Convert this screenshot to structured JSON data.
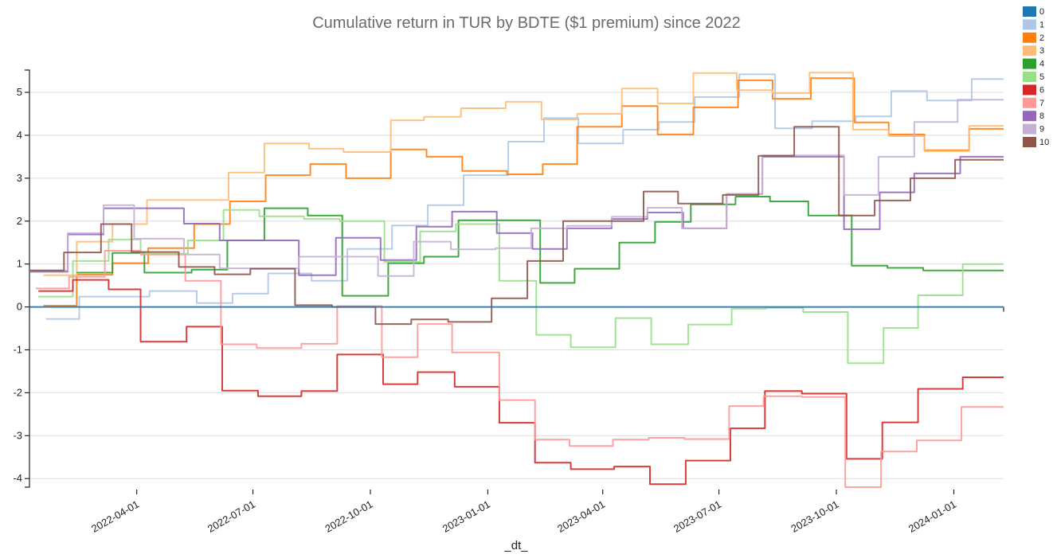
{
  "chart_data": {
    "type": "line",
    "title": "Cumulative return in TUR by BDTE ($1 premium) since 2022",
    "xlabel": "_dt_",
    "ylabel": "",
    "xlim": [
      "2022-01-07",
      "2024-02-09"
    ],
    "ylim": [
      -4.2,
      5.52
    ],
    "grid": true,
    "legend_position": "top-right",
    "step": true,
    "yticks": [
      -4,
      -3,
      -2,
      -1,
      0,
      1,
      2,
      3,
      4,
      5
    ],
    "xticks": [
      "2022-04-01",
      "2022-07-01",
      "2022-10-01",
      "2023-01-01",
      "2023-04-01",
      "2023-07-01",
      "2023-10-01",
      "2024-01-01"
    ],
    "series": [
      {
        "name": "0",
        "color": "#1f77b4",
        "points": [
          [
            "2022-01-07",
            0
          ],
          [
            "2024-02-09",
            0
          ]
        ]
      },
      {
        "name": "1",
        "color": "#aec7e8",
        "points": [
          [
            "2022-01-20",
            -0.28
          ],
          [
            "2022-02-15",
            0.24
          ],
          [
            "2022-04-11",
            0.37
          ],
          [
            "2022-05-18",
            0.09
          ],
          [
            "2022-06-15",
            0.31
          ],
          [
            "2022-07-13",
            0.78
          ],
          [
            "2022-08-16",
            0.61
          ],
          [
            "2022-09-13",
            1.35
          ],
          [
            "2022-10-18",
            1.9
          ],
          [
            "2022-11-15",
            2.37
          ],
          [
            "2022-12-13",
            3.07
          ],
          [
            "2023-01-17",
            3.85
          ],
          [
            "2023-02-14",
            4.4
          ],
          [
            "2023-03-13",
            3.81
          ],
          [
            "2023-04-17",
            4.13
          ],
          [
            "2023-05-15",
            4.31
          ],
          [
            "2023-06-12",
            4.89
          ],
          [
            "2023-07-17",
            5.42
          ],
          [
            "2023-08-14",
            4.16
          ],
          [
            "2023-09-12",
            4.33
          ],
          [
            "2023-10-16",
            4.44
          ],
          [
            "2023-11-13",
            5.03
          ],
          [
            "2023-12-11",
            4.81
          ],
          [
            "2024-01-15",
            5.31
          ]
        ]
      },
      {
        "name": "2",
        "color": "#ff7f0e",
        "points": [
          [
            "2022-01-18",
            0.03
          ],
          [
            "2022-02-13",
            0.75
          ],
          [
            "2022-03-13",
            1.02
          ],
          [
            "2022-04-10",
            1.37
          ],
          [
            "2022-05-16",
            1.93
          ],
          [
            "2022-06-13",
            2.46
          ],
          [
            "2022-07-11",
            3.07
          ],
          [
            "2022-08-15",
            3.33
          ],
          [
            "2022-09-12",
            3.0
          ],
          [
            "2022-10-17",
            3.67
          ],
          [
            "2022-11-14",
            3.5
          ],
          [
            "2022-12-12",
            3.17
          ],
          [
            "2023-01-16",
            3.09
          ],
          [
            "2023-02-13",
            3.33
          ],
          [
            "2023-03-12",
            4.2
          ],
          [
            "2023-04-16",
            4.68
          ],
          [
            "2023-05-14",
            4.02
          ],
          [
            "2023-06-11",
            4.65
          ],
          [
            "2023-07-16",
            5.28
          ],
          [
            "2023-08-12",
            4.85
          ],
          [
            "2023-09-11",
            5.33
          ],
          [
            "2023-10-15",
            4.3
          ],
          [
            "2023-11-11",
            4.02
          ],
          [
            "2023-12-09",
            3.65
          ],
          [
            "2024-01-13",
            4.15
          ]
        ]
      },
      {
        "name": "3",
        "color": "#ffbb78",
        "points": [
          [
            "2022-01-18",
            0.74
          ],
          [
            "2022-02-13",
            1.52
          ],
          [
            "2022-03-13",
            1.93
          ],
          [
            "2022-04-09",
            2.49
          ],
          [
            "2022-06-12",
            3.13
          ],
          [
            "2022-07-10",
            3.81
          ],
          [
            "2022-08-14",
            3.69
          ],
          [
            "2022-09-10",
            3.61
          ],
          [
            "2022-10-17",
            4.35
          ],
          [
            "2022-11-12",
            4.43
          ],
          [
            "2022-12-11",
            4.63
          ],
          [
            "2023-01-15",
            4.78
          ],
          [
            "2023-02-12",
            4.37
          ],
          [
            "2023-03-12",
            4.5
          ],
          [
            "2023-04-16",
            5.09
          ],
          [
            "2023-05-14",
            4.74
          ],
          [
            "2023-06-11",
            5.45
          ],
          [
            "2023-07-15",
            5.05
          ],
          [
            "2023-08-12",
            4.98
          ],
          [
            "2023-09-10",
            5.46
          ],
          [
            "2023-10-14",
            4.13
          ],
          [
            "2023-11-11",
            3.98
          ],
          [
            "2023-12-09",
            3.63
          ],
          [
            "2024-01-13",
            4.22
          ]
        ]
      },
      {
        "name": "4",
        "color": "#2ca02c",
        "points": [
          [
            "2022-02-13",
            0.8
          ],
          [
            "2022-03-13",
            1.26
          ],
          [
            "2022-04-07",
            0.8
          ],
          [
            "2022-05-14",
            0.87
          ],
          [
            "2022-06-11",
            1.55
          ],
          [
            "2022-07-10",
            2.3
          ],
          [
            "2022-08-13",
            2.13
          ],
          [
            "2022-09-09",
            0.26
          ],
          [
            "2022-10-15",
            1.02
          ],
          [
            "2022-11-12",
            1.17
          ],
          [
            "2022-12-09",
            2.02
          ],
          [
            "2023-02-11",
            0.56
          ],
          [
            "2023-03-10",
            0.89
          ],
          [
            "2023-04-14",
            1.5
          ],
          [
            "2023-05-12",
            1.98
          ],
          [
            "2023-06-09",
            2.39
          ],
          [
            "2023-07-14",
            2.57
          ],
          [
            "2023-08-10",
            2.46
          ],
          [
            "2023-09-09",
            2.13
          ],
          [
            "2023-10-13",
            0.96
          ],
          [
            "2023-11-10",
            0.91
          ],
          [
            "2023-12-08",
            0.85
          ]
        ]
      },
      {
        "name": "5",
        "color": "#98df8a",
        "points": [
          [
            "2022-01-14",
            0.24
          ],
          [
            "2022-02-10",
            1.07
          ],
          [
            "2022-03-10",
            1.57
          ],
          [
            "2022-04-04",
            1.24
          ],
          [
            "2022-05-11",
            1.55
          ],
          [
            "2022-06-08",
            2.26
          ],
          [
            "2022-07-06",
            2.11
          ],
          [
            "2022-08-10",
            2.05
          ],
          [
            "2022-09-07",
            2.0
          ],
          [
            "2022-10-12",
            1.05
          ],
          [
            "2022-11-09",
            1.76
          ],
          [
            "2022-12-07",
            1.93
          ],
          [
            "2023-01-10",
            0.61
          ],
          [
            "2023-02-08",
            -0.65
          ],
          [
            "2023-03-07",
            -0.94
          ],
          [
            "2023-04-11",
            -0.26
          ],
          [
            "2023-05-09",
            -0.87
          ],
          [
            "2023-06-07",
            -0.41
          ],
          [
            "2023-07-11",
            -0.04
          ],
          [
            "2023-08-07",
            -0.02
          ],
          [
            "2023-09-05",
            -0.12
          ],
          [
            "2023-10-10",
            -1.31
          ],
          [
            "2023-11-07",
            -0.49
          ],
          [
            "2023-12-04",
            0.27
          ],
          [
            "2024-01-08",
            1.0
          ]
        ]
      },
      {
        "name": "6",
        "color": "#d62728",
        "points": [
          [
            "2022-01-14",
            0.37
          ],
          [
            "2022-02-10",
            0.63
          ],
          [
            "2022-03-10",
            0.41
          ],
          [
            "2022-04-04",
            -0.81
          ],
          [
            "2022-05-10",
            -0.46
          ],
          [
            "2022-06-07",
            -1.95
          ],
          [
            "2022-07-05",
            -2.08
          ],
          [
            "2022-08-08",
            -1.96
          ],
          [
            "2022-09-05",
            -1.11
          ],
          [
            "2022-10-11",
            -1.8
          ],
          [
            "2022-11-07",
            -1.52
          ],
          [
            "2022-12-06",
            -1.86
          ],
          [
            "2023-01-10",
            -2.7
          ],
          [
            "2023-02-07",
            -3.63
          ],
          [
            "2023-03-07",
            -3.78
          ],
          [
            "2023-04-10",
            -3.72
          ],
          [
            "2023-05-08",
            -4.13
          ],
          [
            "2023-06-05",
            -3.58
          ],
          [
            "2023-07-10",
            -2.83
          ],
          [
            "2023-08-06",
            -1.96
          ],
          [
            "2023-09-04",
            -2.02
          ],
          [
            "2023-10-09",
            -3.54
          ],
          [
            "2023-11-06",
            -2.69
          ],
          [
            "2023-12-04",
            -1.91
          ],
          [
            "2024-01-08",
            -1.64
          ]
        ]
      },
      {
        "name": "7",
        "color": "#ff9896",
        "points": [
          [
            "2022-01-12",
            0.43
          ],
          [
            "2022-02-07",
            0.7
          ],
          [
            "2022-03-07",
            1.31
          ],
          [
            "2022-04-04",
            1.22
          ],
          [
            "2022-05-09",
            0.61
          ],
          [
            "2022-06-06",
            -0.87
          ],
          [
            "2022-07-04",
            -0.96
          ],
          [
            "2022-08-08",
            -0.86
          ],
          [
            "2022-09-05",
            0.02
          ],
          [
            "2022-10-10",
            -1.17
          ],
          [
            "2022-11-07",
            -0.4
          ],
          [
            "2022-12-04",
            -1.06
          ],
          [
            "2023-01-10",
            -2.17
          ],
          [
            "2023-02-07",
            -3.09
          ],
          [
            "2023-03-06",
            -3.24
          ],
          [
            "2023-04-09",
            -3.09
          ],
          [
            "2023-05-07",
            -3.05
          ],
          [
            "2023-06-04",
            -3.08
          ],
          [
            "2023-07-09",
            -2.31
          ],
          [
            "2023-08-05",
            -2.08
          ],
          [
            "2023-09-04",
            -2.1
          ],
          [
            "2023-10-08",
            -4.2
          ],
          [
            "2023-11-05",
            -3.37
          ],
          [
            "2023-12-03",
            -3.11
          ],
          [
            "2024-01-07",
            -2.33
          ]
        ]
      },
      {
        "name": "8",
        "color": "#9467bd",
        "points": [
          [
            "2022-01-07",
            0.82
          ],
          [
            "2022-02-06",
            1.69
          ],
          [
            "2022-03-06",
            2.3
          ],
          [
            "2022-05-08",
            1.94
          ],
          [
            "2022-06-05",
            1.55
          ],
          [
            "2022-08-06",
            0.74
          ],
          [
            "2022-09-04",
            1.61
          ],
          [
            "2022-10-09",
            1.09
          ],
          [
            "2022-11-06",
            1.87
          ],
          [
            "2022-12-04",
            2.22
          ],
          [
            "2023-01-08",
            1.72
          ],
          [
            "2023-02-05",
            1.35
          ],
          [
            "2023-03-04",
            1.83
          ],
          [
            "2023-04-08",
            2.05
          ],
          [
            "2023-05-06",
            2.2
          ],
          [
            "2023-06-03",
            1.83
          ],
          [
            "2023-07-07",
            2.63
          ],
          [
            "2023-08-04",
            3.5
          ],
          [
            "2023-10-07",
            1.81
          ],
          [
            "2023-11-04",
            2.67
          ],
          [
            "2023-12-01",
            3.11
          ],
          [
            "2024-01-06",
            3.5
          ]
        ]
      },
      {
        "name": "9",
        "color": "#c5b0d5",
        "points": [
          [
            "2022-01-07",
            0.85
          ],
          [
            "2022-02-06",
            1.72
          ],
          [
            "2022-03-06",
            2.37
          ],
          [
            "2022-03-30",
            1.59
          ],
          [
            "2022-05-08",
            1.22
          ],
          [
            "2022-06-05",
            0.9
          ],
          [
            "2022-08-06",
            1.17
          ],
          [
            "2022-10-07",
            0.72
          ],
          [
            "2022-11-04",
            1.52
          ],
          [
            "2022-12-03",
            1.34
          ],
          [
            "2023-01-07",
            1.37
          ],
          [
            "2023-02-04",
            1.83
          ],
          [
            "2023-03-04",
            1.89
          ],
          [
            "2023-04-08",
            2.1
          ],
          [
            "2023-05-06",
            2.31
          ],
          [
            "2023-06-02",
            1.83
          ],
          [
            "2023-07-07",
            2.63
          ],
          [
            "2023-08-04",
            3.53
          ],
          [
            "2023-10-07",
            2.61
          ],
          [
            "2023-11-03",
            3.5
          ],
          [
            "2023-12-01",
            4.31
          ],
          [
            "2024-01-04",
            4.83
          ]
        ]
      },
      {
        "name": "10",
        "color": "#8c564b",
        "points": [
          [
            "2022-01-07",
            0.85
          ],
          [
            "2022-02-03",
            1.27
          ],
          [
            "2022-03-04",
            1.93
          ],
          [
            "2022-03-28",
            1.28
          ],
          [
            "2022-05-04",
            0.93
          ],
          [
            "2022-06-01",
            0.76
          ],
          [
            "2022-06-29",
            0.89
          ],
          [
            "2022-08-03",
            0.04
          ],
          [
            "2022-09-01",
            0.0
          ],
          [
            "2022-10-05",
            -0.4
          ],
          [
            "2022-11-02",
            -0.29
          ],
          [
            "2022-12-01",
            -0.35
          ],
          [
            "2023-01-04",
            0.2
          ],
          [
            "2023-02-01",
            1.07
          ],
          [
            "2023-03-01",
            2.0
          ],
          [
            "2023-05-03",
            2.69
          ],
          [
            "2023-05-30",
            2.41
          ],
          [
            "2023-07-04",
            2.61
          ],
          [
            "2023-08-01",
            3.52
          ],
          [
            "2023-08-29",
            4.2
          ],
          [
            "2023-10-03",
            2.13
          ],
          [
            "2023-10-31",
            2.48
          ],
          [
            "2023-11-28",
            3.0
          ],
          [
            "2024-01-02",
            3.43
          ]
        ]
      }
    ]
  }
}
